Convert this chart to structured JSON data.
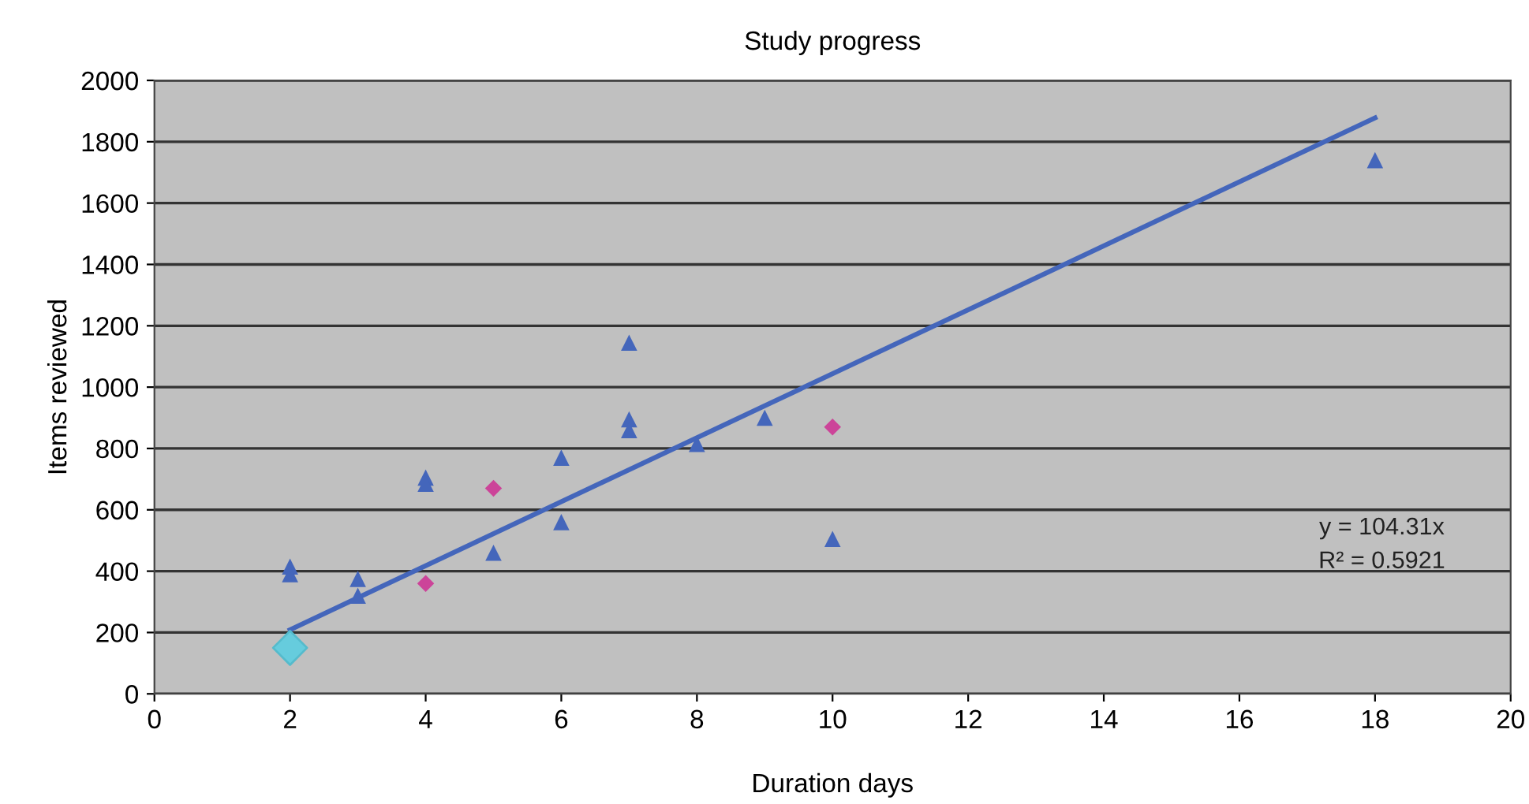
{
  "chart_data": {
    "type": "scatter",
    "title": "Study progress",
    "xlabel": "Duration days",
    "ylabel": "Items reviewed",
    "xlim": [
      0,
      20
    ],
    "xticks": [
      0,
      2,
      4,
      6,
      8,
      10,
      12,
      14,
      16,
      18,
      20
    ],
    "ylim": [
      0,
      2000
    ],
    "yticks": [
      0,
      200,
      400,
      600,
      800,
      1000,
      1200,
      1400,
      1600,
      1800,
      2000
    ],
    "grid": "y",
    "legend": false,
    "series": [
      {
        "type": "line",
        "color": "#4466bb",
        "marker": "none",
        "line_style": "solid",
        "x": [
          2,
          18
        ],
        "values": [
          209,
          1878
        ]
      },
      {
        "color": "#4466bb",
        "marker": "triangle",
        "x": [
          2,
          2,
          3,
          3,
          4,
          4,
          5,
          6,
          6,
          7,
          7,
          7,
          8,
          9,
          10,
          18
        ],
        "values": [
          415,
          390,
          375,
          320,
          705,
          685,
          460,
          770,
          560,
          1145,
          895,
          860,
          815,
          900,
          505,
          1740
        ]
      },
      {
        "color": "#cc4499",
        "marker": "diamond",
        "x": [
          4,
          5,
          10
        ],
        "values": [
          360,
          670,
          870
        ]
      },
      {
        "color": "#66ccdd",
        "marker": "diamond",
        "x": [
          2
        ],
        "values": [
          150
        ]
      }
    ],
    "annotations": [
      "y = 104.31x",
      "R² = 0.5921"
    ]
  }
}
